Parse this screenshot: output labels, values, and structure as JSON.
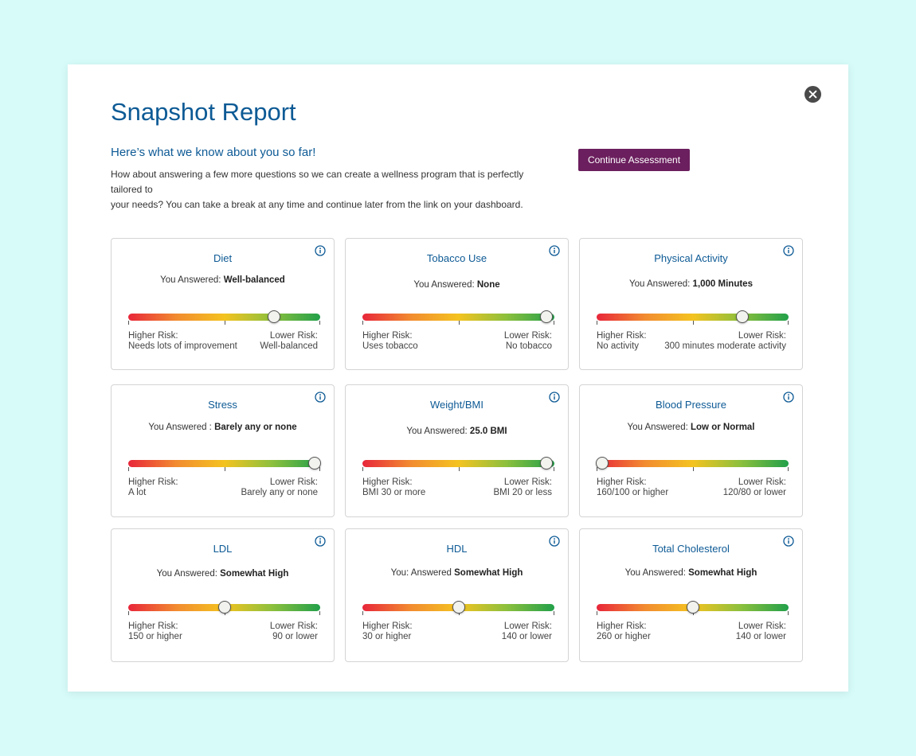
{
  "modal": {
    "title": "Snapshot Report",
    "subtitle": "Here’s what we know about you so far!",
    "intro_line1": "How about answering a few more questions so we can create a wellness program that is perfectly tailored to",
    "intro_line2": "your needs? You can take a break at any time and continue later from the link on your dashboard.",
    "cta_label": "Continue Assessment",
    "close_icon": "close-icon"
  },
  "colors": {
    "accent": "#0d5a95",
    "cta": "#6b1f5e",
    "background": "#d6fbf9",
    "risk_high": "#e8263a",
    "risk_mid": "#f4c320",
    "risk_low": "#22a04a"
  },
  "cards": [
    {
      "title": "Diet",
      "answer_prefix": "You Answered:",
      "answer_value": "Well-balanced",
      "level": 0.76,
      "high_label": "Higher Risk:",
      "high_value": "Needs lots of improvement",
      "low_label": "Lower Risk:",
      "low_value": "Well-balanced"
    },
    {
      "title": "Tobacco Use",
      "answer_prefix": "You Answered:",
      "answer_value": "None",
      "level": 0.96,
      "high_label": "Higher Risk:",
      "high_value": "Uses tobacco",
      "low_label": "Lower Risk:",
      "low_value": "No tobacco"
    },
    {
      "title": "Physical Activity",
      "answer_prefix": "You Answered:",
      "answer_value": "1,000 Minutes",
      "level": 0.76,
      "high_label": "Higher Risk:",
      "high_value": "No activity",
      "low_label": "Lower Risk:",
      "low_value": "300 minutes moderate activity"
    },
    {
      "title": "Stress",
      "answer_prefix": "You Answered :",
      "answer_value": "Barely any or none",
      "level": 0.97,
      "high_label": "Higher Risk:",
      "high_value": "A lot",
      "low_label": "Lower Risk:",
      "low_value": "Barely any or none"
    },
    {
      "title": "Weight/BMI",
      "answer_prefix": "You Answered:",
      "answer_value": "25.0 BMI",
      "level": 0.96,
      "high_label": "Higher Risk:",
      "high_value": "BMI 30 or more",
      "low_label": "Lower Risk:",
      "low_value": "BMI 20 or less"
    },
    {
      "title": "Blood Pressure",
      "answer_prefix": "You Answered:",
      "answer_value": "Low or Normal",
      "level": 0.03,
      "high_label": "Higher Risk:",
      "high_value": "160/100 or higher",
      "low_label": "Lower Risk:",
      "low_value": "120/80 or lower"
    },
    {
      "title": "LDL",
      "answer_prefix": "You Answered:",
      "answer_value": "Somewhat High",
      "level": 0.5,
      "high_label": "Higher Risk:",
      "high_value": "150 or higher",
      "low_label": "Lower Risk:",
      "low_value": "90 or lower"
    },
    {
      "title": "HDL",
      "answer_prefix": "You: Answered",
      "answer_value": "Somewhat High",
      "level": 0.5,
      "high_label": "Higher Risk:",
      "high_value": "30 or higher",
      "low_label": "Lower Risk:",
      "low_value": "140 or lower"
    },
    {
      "title": "Total Cholesterol",
      "answer_prefix": "You Answered:",
      "answer_value": "Somewhat High",
      "level": 0.5,
      "high_label": "Higher Risk:",
      "high_value": "260 or higher",
      "low_label": "Lower Risk:",
      "low_value": "140 or lower"
    }
  ]
}
